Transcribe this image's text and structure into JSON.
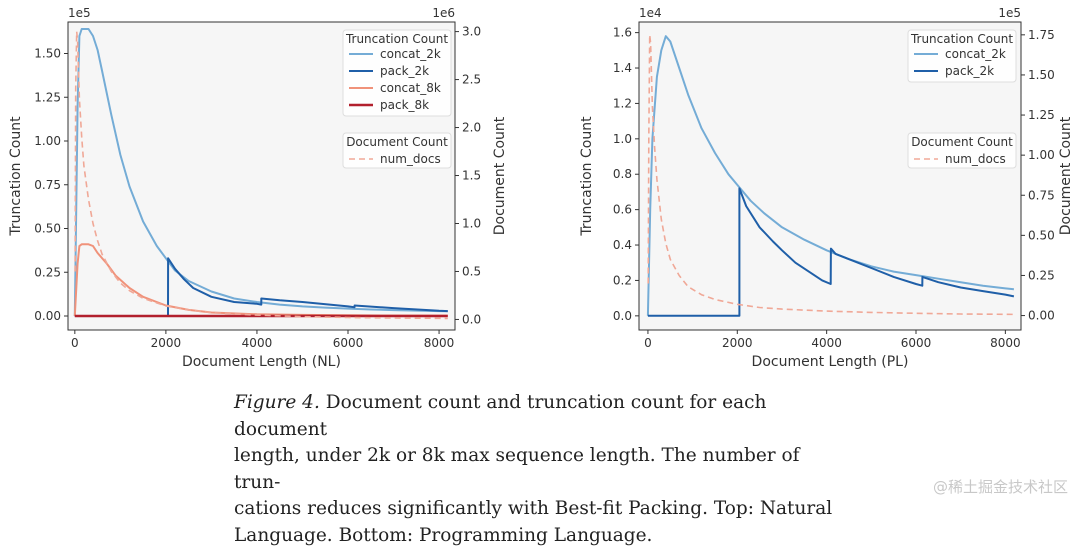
{
  "chart_data": [
    {
      "type": "line",
      "xlabel": "Document Length (NL)",
      "ylabel": "Truncation Count",
      "y2label": "Document Count",
      "y_exponent": "1e5",
      "y2_exponent": "1e6",
      "xlim": [
        -150,
        8350
      ],
      "ylim": [
        -0.08,
        1.68
      ],
      "y2lim": [
        -0.11,
        3.1
      ],
      "xticks": [
        0,
        2000,
        4000,
        6000,
        8000
      ],
      "yticks": [
        "0.00",
        "0.25",
        "0.50",
        "0.75",
        "1.00",
        "1.25",
        "1.50"
      ],
      "y2ticks": [
        "0.0",
        "0.5",
        "1.0",
        "1.5",
        "2.0",
        "2.5",
        "3.0"
      ],
      "legend_title": "Truncation Count",
      "legend2_title": "Document Count",
      "legend_position": "upper right",
      "series": [
        {
          "name": "concat_2k",
          "axis": "left",
          "color": "#74acd6",
          "style": "solid",
          "x": [
            0,
            60,
            100,
            150,
            200,
            300,
            400,
            500,
            600,
            800,
            1000,
            1200,
            1500,
            1800,
            2000,
            2200,
            2500,
            3000,
            3500,
            4000,
            4500,
            5000,
            5500,
            6000,
            6500,
            7000,
            7500,
            8000,
            8192
          ],
          "y": [
            0,
            1.2,
            1.6,
            1.64,
            1.64,
            1.64,
            1.6,
            1.52,
            1.4,
            1.15,
            0.92,
            0.74,
            0.54,
            0.4,
            0.33,
            0.26,
            0.2,
            0.14,
            0.1,
            0.08,
            0.065,
            0.055,
            0.048,
            0.042,
            0.037,
            0.034,
            0.031,
            0.028,
            0.027
          ]
        },
        {
          "name": "pack_2k",
          "axis": "left",
          "color": "#1f5fa8",
          "style": "solid",
          "x": [
            0,
            2047,
            2048,
            2100,
            2200,
            2400,
            2600,
            3000,
            3500,
            4000,
            4095,
            4096,
            4500,
            5000,
            6000,
            6143,
            6144,
            7000,
            8000,
            8192
          ],
          "y": [
            0,
            0,
            0.33,
            0.31,
            0.27,
            0.21,
            0.16,
            0.11,
            0.08,
            0.07,
            0.065,
            0.1,
            0.09,
            0.08,
            0.055,
            0.05,
            0.06,
            0.045,
            0.03,
            0.028
          ]
        },
        {
          "name": "concat_8k",
          "axis": "left",
          "color": "#f0927a",
          "style": "solid",
          "x": [
            0,
            60,
            100,
            150,
            200,
            300,
            400,
            500,
            700,
            900,
            1200,
            1500,
            2000,
            2500,
            3000,
            4000,
            5000,
            6000,
            7000,
            8000,
            8192
          ],
          "y": [
            0,
            0.3,
            0.4,
            0.41,
            0.41,
            0.41,
            0.4,
            0.36,
            0.3,
            0.23,
            0.16,
            0.11,
            0.06,
            0.035,
            0.02,
            0.01,
            0.006,
            0.004,
            0.003,
            0.002,
            0.002
          ]
        },
        {
          "name": "pack_8k",
          "axis": "left",
          "color": "#b2202d",
          "style": "solid",
          "width": 2.5,
          "x": [
            0,
            8192
          ],
          "y": [
            0,
            0
          ]
        },
        {
          "name": "num_docs",
          "axis": "right",
          "color": "#f0a897",
          "style": "dashed",
          "x": [
            5,
            20,
            40,
            60,
            80,
            100,
            150,
            200,
            300,
            400,
            500,
            600,
            800,
            1000,
            1200,
            1500,
            2000,
            2500,
            3000,
            4000,
            5000,
            6000,
            7000,
            8000,
            8192
          ],
          "y": [
            0.5,
            2.4,
            3.0,
            2.9,
            2.6,
            2.3,
            1.9,
            1.6,
            1.25,
            1.0,
            0.82,
            0.68,
            0.5,
            0.38,
            0.3,
            0.22,
            0.14,
            0.1,
            0.07,
            0.045,
            0.03,
            0.02,
            0.015,
            0.012,
            0.01
          ]
        }
      ]
    },
    {
      "type": "line",
      "xlabel": "Document Length (PL)",
      "ylabel": "Truncation Count",
      "y2label": "Document Count",
      "y_exponent": "1e4",
      "y2_exponent": "1e5",
      "xlim": [
        -200,
        8350
      ],
      "ylim": [
        -0.08,
        1.66
      ],
      "y2lim": [
        -0.09,
        1.83
      ],
      "xticks": [
        0,
        2000,
        4000,
        6000,
        8000
      ],
      "yticks": [
        "0.0",
        "0.2",
        "0.4",
        "0.6",
        "0.8",
        "1.0",
        "1.2",
        "1.4",
        "1.6"
      ],
      "y2ticks": [
        "0.00",
        "0.25",
        "0.50",
        "0.75",
        "1.00",
        "1.25",
        "1.50",
        "1.75"
      ],
      "legend_title": "Truncation Count",
      "legend2_title": "Document Count",
      "legend_position": "upper right",
      "series": [
        {
          "name": "concat_2k",
          "axis": "left",
          "color": "#74acd6",
          "style": "solid",
          "x": [
            0,
            50,
            100,
            200,
            300,
            400,
            500,
            700,
            900,
            1200,
            1500,
            1800,
            2000,
            2300,
            2600,
            3000,
            3500,
            4000,
            4500,
            5000,
            5500,
            6000,
            6500,
            7000,
            7500,
            8000,
            8192
          ],
          "y": [
            0,
            0.6,
            1.0,
            1.35,
            1.5,
            1.58,
            1.55,
            1.4,
            1.25,
            1.06,
            0.92,
            0.8,
            0.74,
            0.65,
            0.58,
            0.5,
            0.43,
            0.37,
            0.32,
            0.28,
            0.25,
            0.23,
            0.21,
            0.19,
            0.17,
            0.155,
            0.15
          ]
        },
        {
          "name": "pack_2k",
          "axis": "left",
          "color": "#1f5fa8",
          "style": "solid",
          "x": [
            0,
            2047,
            2048,
            2200,
            2500,
            2800,
            3000,
            3300,
            3600,
            3900,
            4090,
            4096,
            4200,
            4500,
            5000,
            5500,
            6000,
            6140,
            6144,
            6500,
            7000,
            7500,
            8000,
            8192
          ],
          "y": [
            0,
            0,
            0.72,
            0.62,
            0.5,
            0.42,
            0.37,
            0.3,
            0.25,
            0.2,
            0.18,
            0.38,
            0.35,
            0.32,
            0.27,
            0.22,
            0.18,
            0.17,
            0.22,
            0.19,
            0.16,
            0.14,
            0.12,
            0.11
          ]
        },
        {
          "name": "num_docs",
          "axis": "right",
          "color": "#f0a897",
          "style": "dashed",
          "x": [
            5,
            20,
            40,
            60,
            80,
            100,
            150,
            200,
            300,
            400,
            500,
            700,
            900,
            1200,
            1500,
            2000,
            2500,
            3000,
            4000,
            5000,
            6000,
            7000,
            8000,
            8192
          ],
          "y": [
            0.2,
            1.1,
            1.75,
            1.7,
            1.5,
            1.3,
            1.05,
            0.85,
            0.6,
            0.45,
            0.35,
            0.25,
            0.18,
            0.13,
            0.1,
            0.07,
            0.05,
            0.04,
            0.028,
            0.02,
            0.014,
            0.01,
            0.008,
            0.007
          ]
        }
      ]
    }
  ],
  "caption": {
    "figure_label": "Figure 4.",
    "lines": [
      "Document count and truncation count for each document",
      "length, under 2k or 8k max sequence length. The number of trun-",
      "cations reduces significantly with Best-fit Packing. Top: Natural",
      "Language. Bottom: Programming Language."
    ]
  },
  "watermark": "@稀土掘金技术社区"
}
